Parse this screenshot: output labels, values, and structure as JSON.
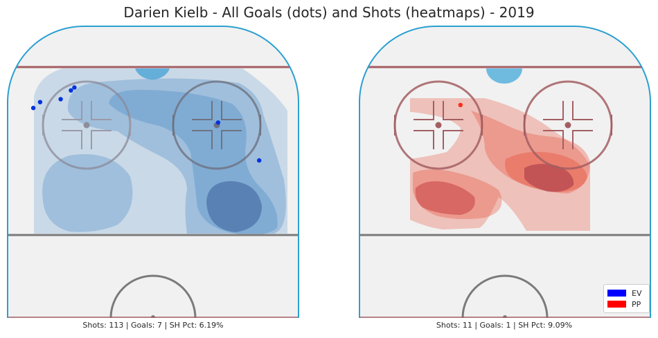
{
  "title": "Darien Kielb - All Goals (dots) and Shots (heatmaps) - 2019",
  "colors": {
    "rink_fill": "#f1f1f1",
    "boards": "#2a9fd0",
    "goal_line": "#a35e62",
    "center_line": "#7a7a7a",
    "ev_heat": "#3f86c4",
    "pp_heat": "#e8533d",
    "ev_goal": "#0033dd",
    "pp_goal": "#ff2a1a"
  },
  "legend": {
    "items": [
      {
        "label": "EV",
        "color": "#0000ff"
      },
      {
        "label": "PP",
        "color": "#ff0000"
      }
    ]
  },
  "chart_data": [
    {
      "type": "heatmap",
      "panel": "EV",
      "caption": "Shots: 113 | Goals: 7 | SH Pct: 6.19%",
      "stats": {
        "shots": 113,
        "goals": 7,
        "sh_pct": "6.19%"
      },
      "goals_xy": [
        [
          -24,
          78
        ],
        [
          -23,
          79
        ],
        [
          -27,
          75
        ],
        [
          -33,
          74
        ],
        [
          -35,
          72
        ],
        [
          19,
          67
        ],
        [
          31,
          54
        ]
      ],
      "heat_color": "#3f86c4"
    },
    {
      "type": "heatmap",
      "panel": "PP",
      "caption": "Shots: 11 | Goals: 1 | SH Pct: 9.09%",
      "stats": {
        "shots": 11,
        "goals": 1,
        "sh_pct": "9.09%"
      },
      "goals_xy": [
        [
          -13,
          73
        ]
      ],
      "heat_color": "#e8533d"
    }
  ]
}
